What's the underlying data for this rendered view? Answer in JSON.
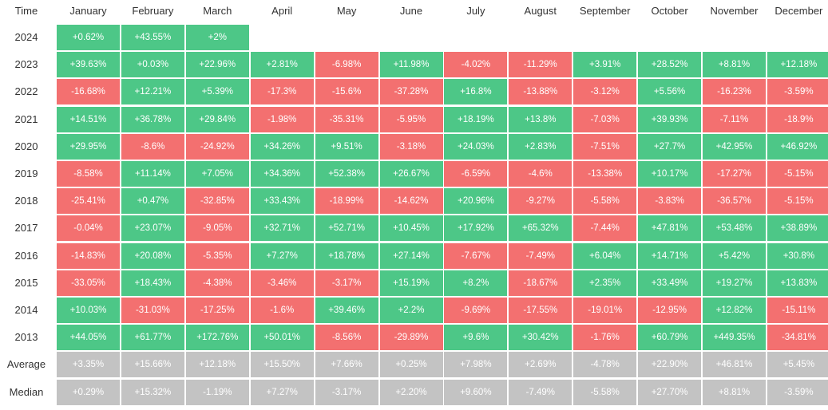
{
  "chart_data": {
    "type": "heatmap",
    "corner_label": "Time",
    "columns": [
      "January",
      "February",
      "March",
      "April",
      "May",
      "June",
      "July",
      "August",
      "September",
      "October",
      "November",
      "December"
    ],
    "rows": [
      {
        "label": "2024",
        "values": [
          "+0.62%",
          "+43.55%",
          "+2%"
        ]
      },
      {
        "label": "2023",
        "values": [
          "+39.63%",
          "+0.03%",
          "+22.96%",
          "+2.81%",
          "-6.98%",
          "+11.98%",
          "-4.02%",
          "-11.29%",
          "+3.91%",
          "+28.52%",
          "+8.81%",
          "+12.18%"
        ]
      },
      {
        "label": "2022",
        "values": [
          "-16.68%",
          "+12.21%",
          "+5.39%",
          "-17.3%",
          "-15.6%",
          "-37.28%",
          "+16.8%",
          "-13.88%",
          "-3.12%",
          "+5.56%",
          "-16.23%",
          "-3.59%"
        ]
      },
      {
        "label": "2021",
        "values": [
          "+14.51%",
          "+36.78%",
          "+29.84%",
          "-1.98%",
          "-35.31%",
          "-5.95%",
          "+18.19%",
          "+13.8%",
          "-7.03%",
          "+39.93%",
          "-7.11%",
          "-18.9%"
        ]
      },
      {
        "label": "2020",
        "values": [
          "+29.95%",
          "-8.6%",
          "-24.92%",
          "+34.26%",
          "+9.51%",
          "-3.18%",
          "+24.03%",
          "+2.83%",
          "-7.51%",
          "+27.7%",
          "+42.95%",
          "+46.92%"
        ]
      },
      {
        "label": "2019",
        "values": [
          "-8.58%",
          "+11.14%",
          "+7.05%",
          "+34.36%",
          "+52.38%",
          "+26.67%",
          "-6.59%",
          "-4.6%",
          "-13.38%",
          "+10.17%",
          "-17.27%",
          "-5.15%"
        ]
      },
      {
        "label": "2018",
        "values": [
          "-25.41%",
          "+0.47%",
          "-32.85%",
          "+33.43%",
          "-18.99%",
          "-14.62%",
          "+20.96%",
          "-9.27%",
          "-5.58%",
          "-3.83%",
          "-36.57%",
          "-5.15%"
        ]
      },
      {
        "label": "2017",
        "values": [
          "-0.04%",
          "+23.07%",
          "-9.05%",
          "+32.71%",
          "+52.71%",
          "+10.45%",
          "+17.92%",
          "+65.32%",
          "-7.44%",
          "+47.81%",
          "+53.48%",
          "+38.89%"
        ]
      },
      {
        "label": "2016",
        "values": [
          "-14.83%",
          "+20.08%",
          "-5.35%",
          "+7.27%",
          "+18.78%",
          "+27.14%",
          "-7.67%",
          "-7.49%",
          "+6.04%",
          "+14.71%",
          "+5.42%",
          "+30.8%"
        ]
      },
      {
        "label": "2015",
        "values": [
          "-33.05%",
          "+18.43%",
          "-4.38%",
          "-3.46%",
          "-3.17%",
          "+15.19%",
          "+8.2%",
          "-18.67%",
          "+2.35%",
          "+33.49%",
          "+19.27%",
          "+13.83%"
        ]
      },
      {
        "label": "2014",
        "values": [
          "+10.03%",
          "-31.03%",
          "-17.25%",
          "-1.6%",
          "+39.46%",
          "+2.2%",
          "-9.69%",
          "-17.55%",
          "-19.01%",
          "-12.95%",
          "+12.82%",
          "-15.11%"
        ]
      },
      {
        "label": "2013",
        "values": [
          "+44.05%",
          "+61.77%",
          "+172.76%",
          "+50.01%",
          "-8.56%",
          "-29.89%",
          "+9.6%",
          "+30.42%",
          "-1.76%",
          "+60.79%",
          "+449.35%",
          "-34.81%"
        ]
      }
    ],
    "summary_rows": [
      {
        "label": "Average",
        "values": [
          "+3.35%",
          "+15.66%",
          "+12.18%",
          "+15.50%",
          "+7.66%",
          "+0.25%",
          "+7.98%",
          "+2.69%",
          "-4.78%",
          "+22.90%",
          "+46.81%",
          "+5.45%"
        ]
      },
      {
        "label": "Median",
        "values": [
          "+0.29%",
          "+15.32%",
          "-1.19%",
          "+7.27%",
          "-3.17%",
          "+2.20%",
          "+9.60%",
          "-7.49%",
          "-5.58%",
          "+27.70%",
          "+8.81%",
          "-3.59%"
        ]
      }
    ],
    "colors": {
      "positive": "#4dc787",
      "negative": "#f37070",
      "summary": "#c3c3c3",
      "label_text": "#333333",
      "cell_text": "#ffffff"
    }
  }
}
